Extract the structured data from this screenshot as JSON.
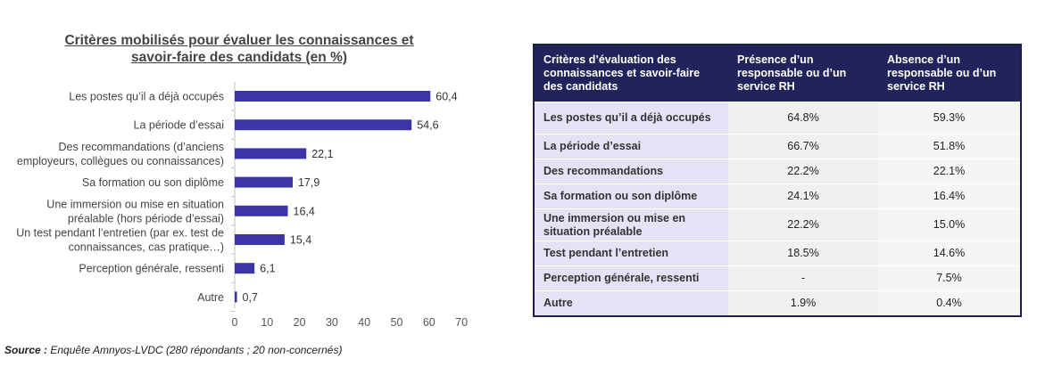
{
  "chart_data": {
    "type": "bar",
    "orientation": "horizontal",
    "title": [
      "Critères mobilisés pour évaluer les connaissances et",
      "savoir-faire des candidats (en %)"
    ],
    "categories": [
      [
        "Les postes qu’il a déjà occupés"
      ],
      [
        "La période d’essai"
      ],
      [
        "Des recommandations (d’anciens",
        "employeurs, collègues ou connaissances)"
      ],
      [
        "Sa formation ou son diplôme"
      ],
      [
        "Une immersion ou mise en situation",
        "préalable (hors période d’essai)"
      ],
      [
        "Un test pendant l’entretien (par ex. test de",
        "connaissances, cas pratique…)"
      ],
      [
        "Perception générale, ressenti"
      ],
      [
        "Autre"
      ]
    ],
    "values": [
      60.4,
      54.6,
      22.1,
      17.9,
      16.4,
      15.4,
      6.1,
      0.7
    ],
    "value_labels": [
      "60,4",
      "54,6",
      "22,1",
      "17,9",
      "16,4",
      "15,4",
      "6,1",
      "0,7"
    ],
    "xlim": [
      0,
      70
    ],
    "xticks": [
      0,
      10,
      20,
      30,
      40,
      50,
      60,
      70
    ],
    "bar_color": "#3b35a8",
    "xlabel": "",
    "ylabel": ""
  },
  "source": {
    "label": "Source :",
    "text": "Enquête Amnyos-LVDC (280 répondants ; 20 non-concernés)"
  },
  "table": {
    "headers": [
      "Critères d’évaluation des connaissances et savoir-faire des candidats",
      "Présence d’un responsable ou d’un service RH",
      "Absence d’un responsable ou d’un service RH"
    ],
    "rows": [
      {
        "label": "Les postes qu’il a déjà occupés",
        "presence": "64.8%",
        "absence": "59.3%"
      },
      {
        "label": "La période d’essai",
        "presence": "66.7%",
        "absence": "51.8%"
      },
      {
        "label": "Des recommandations",
        "presence": "22.2%",
        "absence": "22.1%"
      },
      {
        "label": "Sa formation ou son diplôme",
        "presence": "24.1%",
        "absence": "16.4%"
      },
      {
        "label": "Une immersion ou mise en situation préalable",
        "presence": "22.2%",
        "absence": "15.0%"
      },
      {
        "label": "Test pendant l’entretien",
        "presence": "18.5%",
        "absence": "14.6%"
      },
      {
        "label": "Perception générale, ressenti",
        "presence": "-",
        "absence": "7.5%"
      },
      {
        "label": "Autre",
        "presence": "1.9%",
        "absence": "0.4%"
      }
    ]
  }
}
